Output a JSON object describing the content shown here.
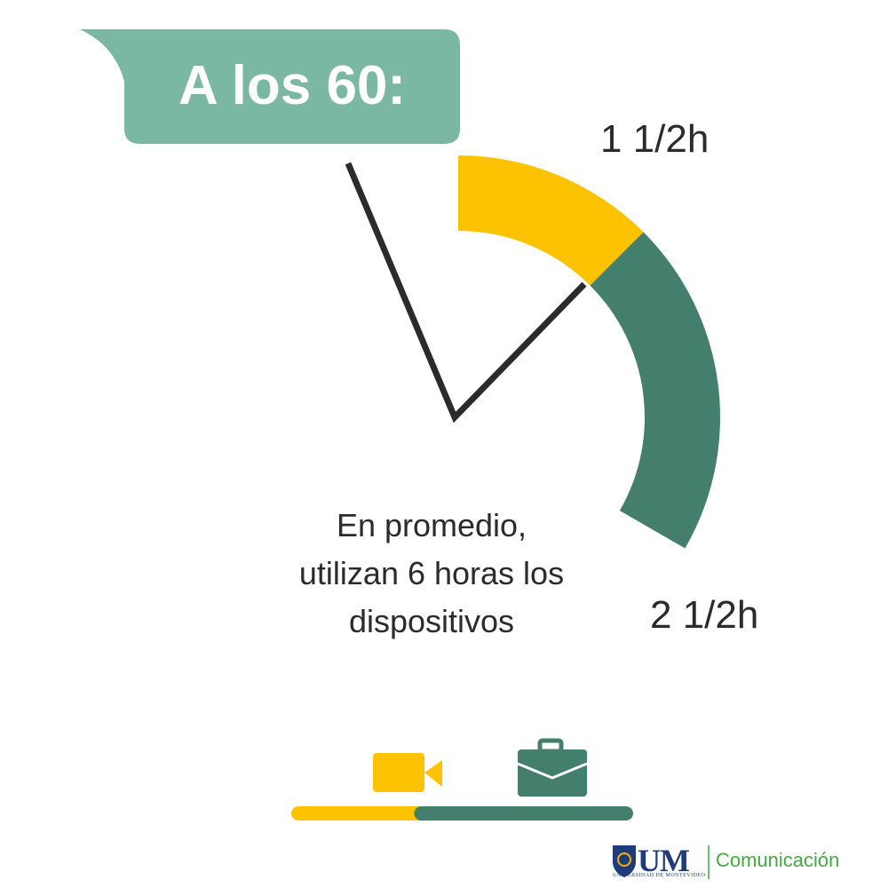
{
  "title": "A los 60:",
  "caption": [
    "En promedio,",
    "utilizan 6 horas los",
    "dispositivos"
  ],
  "colors": {
    "bubble": "#7ab8a3",
    "entertainment": "#fdc300",
    "work": "#447f6d",
    "hands": "#2b2b2b"
  },
  "chart_data": {
    "type": "pie",
    "total_hours": 6,
    "segments": [
      {
        "label": "1 1/2h",
        "value": 1.5,
        "icon": "video-camera-icon",
        "color": "#fdc300"
      },
      {
        "label": "2 1/2h",
        "value": 2.5,
        "icon": "briefcase-icon",
        "color": "#447f6d"
      }
    ]
  },
  "logo": {
    "name": "UM",
    "subtitle": "UNIVERSIDAD DE MONTEVIDEO",
    "department": "Comunicación"
  }
}
